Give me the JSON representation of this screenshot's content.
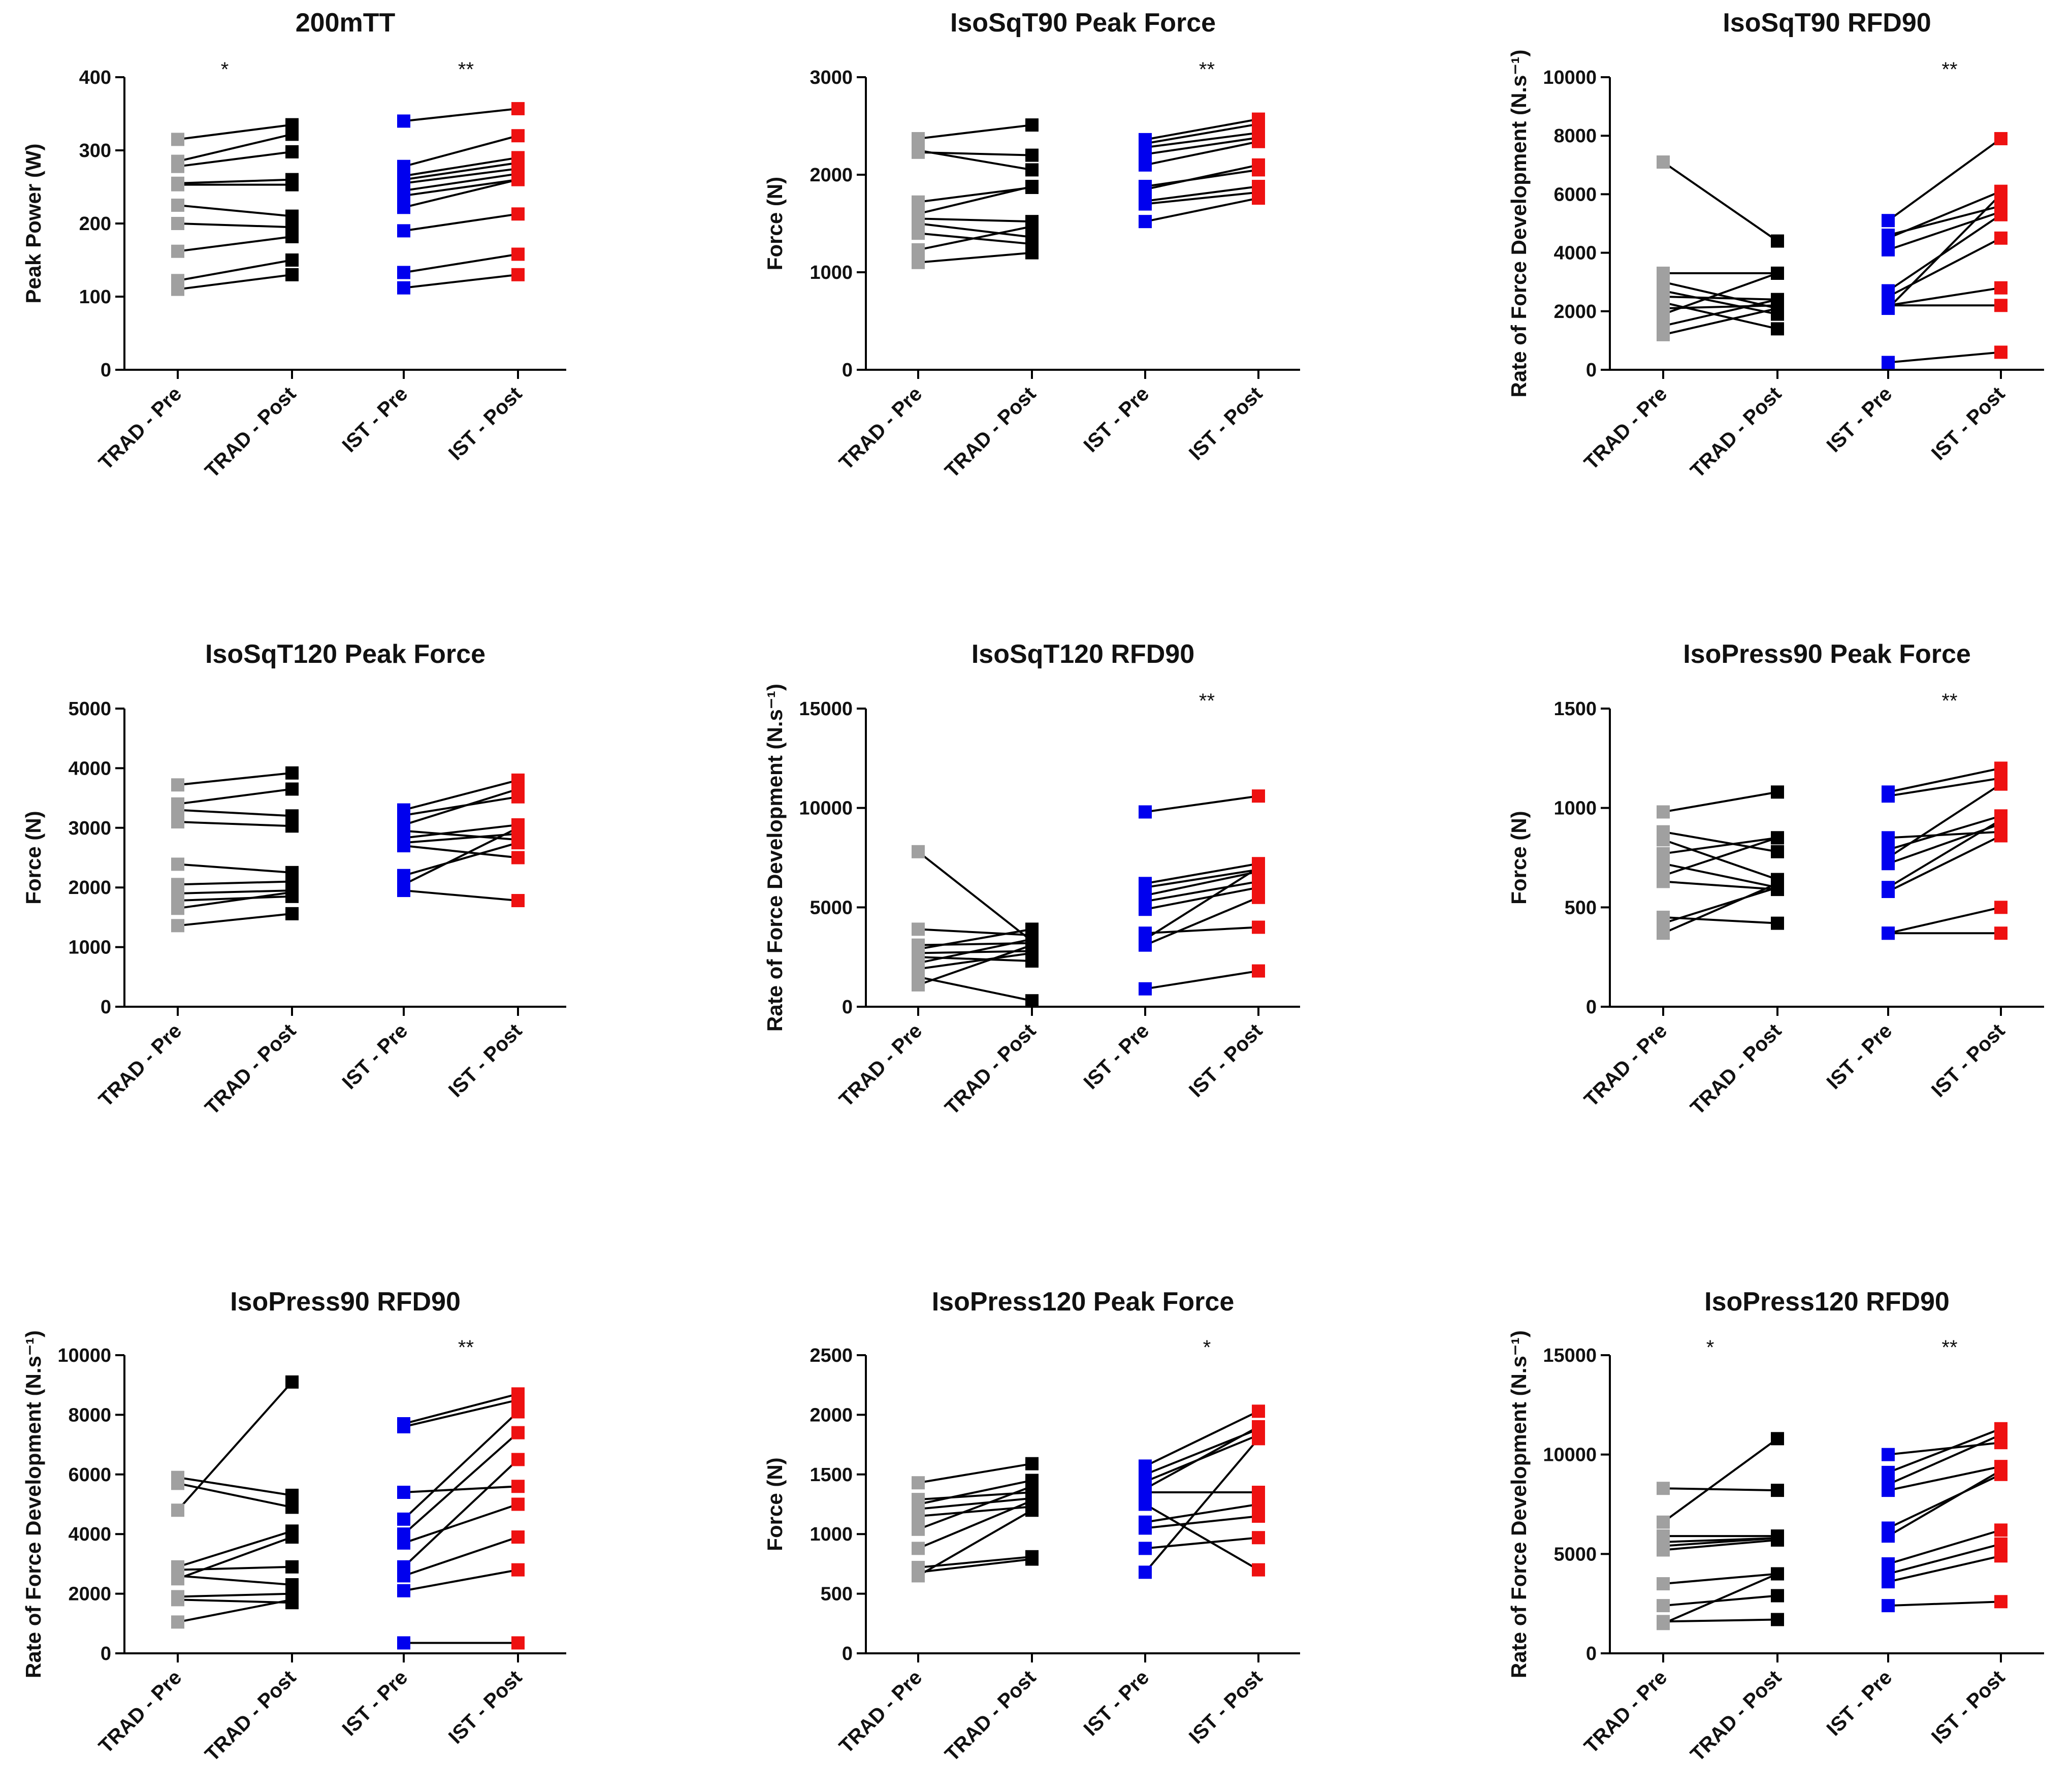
{
  "figure": {
    "categories": [
      "TRAD - Pre",
      "TRAD - Post",
      "IST - Pre",
      "IST - Post"
    ],
    "colors": {
      "trad_pre": "#a0a0a0",
      "trad_post": "#000000",
      "ist_pre": "#0000ee",
      "ist_post": "#ee1111",
      "line": "#000000"
    }
  },
  "chart_data": [
    {
      "type": "scatter",
      "title": "200mTT",
      "ylabel": "Peak  Power (W)",
      "ylim": [
        0,
        400
      ],
      "yticks": [
        0,
        100,
        200,
        300,
        400
      ],
      "significance": {
        "trad": "*",
        "ist": "**"
      },
      "trad_pairs": [
        [
          315,
          335
        ],
        [
          285,
          322
        ],
        [
          278,
          298
        ],
        [
          255,
          260
        ],
        [
          253,
          253
        ],
        [
          225,
          210
        ],
        [
          200,
          195
        ],
        [
          162,
          182
        ],
        [
          122,
          150
        ],
        [
          110,
          130
        ]
      ],
      "ist_pairs": [
        [
          340,
          357
        ],
        [
          278,
          320
        ],
        [
          265,
          290
        ],
        [
          260,
          283
        ],
        [
          255,
          275
        ],
        [
          245,
          268
        ],
        [
          238,
          260
        ],
        [
          222,
          260
        ],
        [
          190,
          213
        ],
        [
          133,
          158
        ],
        [
          112,
          130
        ]
      ]
    },
    {
      "type": "scatter",
      "title": "IsoSqT90 Peak Force",
      "ylabel": "Force (N)",
      "ylim": [
        0,
        3000
      ],
      "yticks": [
        0,
        1000,
        2000,
        3000
      ],
      "significance": {
        "trad": "",
        "ist": "**"
      },
      "trad_pairs": [
        [
          2370,
          2510
        ],
        [
          2250,
          2050
        ],
        [
          2230,
          2200
        ],
        [
          1720,
          1870
        ],
        [
          1600,
          1880
        ],
        [
          1550,
          1520
        ],
        [
          1500,
          1360
        ],
        [
          1400,
          1290
        ],
        [
          1230,
          1470
        ],
        [
          1100,
          1200
        ]
      ],
      "ist_pairs": [
        [
          2360,
          2570
        ],
        [
          2320,
          2520
        ],
        [
          2280,
          2430
        ],
        [
          2210,
          2380
        ],
        [
          2100,
          2340
        ],
        [
          1880,
          2050
        ],
        [
          1850,
          2100
        ],
        [
          1730,
          1880
        ],
        [
          1700,
          1820
        ],
        [
          1520,
          1760
        ]
      ]
    },
    {
      "type": "scatter",
      "title": "IsoSqT90 RFD90",
      "ylabel": "Rate of Force Development (N.s⁻¹)",
      "ylim": [
        0,
        10000
      ],
      "yticks": [
        0,
        2000,
        4000,
        6000,
        8000,
        10000
      ],
      "significance": {
        "trad": "",
        "ist": "**"
      },
      "trad_pairs": [
        [
          7100,
          4400
        ],
        [
          3300,
          3300
        ],
        [
          3000,
          2100
        ],
        [
          2700,
          1900
        ],
        [
          2500,
          2400
        ],
        [
          2300,
          1400
        ],
        [
          2100,
          2200
        ],
        [
          1900,
          3300
        ],
        [
          1500,
          2400
        ],
        [
          1200,
          2100
        ]
      ],
      "ist_pairs": [
        [
          5100,
          7900
        ],
        [
          4600,
          5600
        ],
        [
          4500,
          6100
        ],
        [
          4100,
          5400
        ],
        [
          2700,
          5300
        ],
        [
          2500,
          4500
        ],
        [
          2200,
          2200
        ],
        [
          2200,
          2800
        ],
        [
          2100,
          6000
        ],
        [
          250,
          600
        ]
      ]
    },
    {
      "type": "scatter",
      "title": "IsoSqT120 Peak Force",
      "ylabel": "Force (N)",
      "ylim": [
        0,
        5000
      ],
      "yticks": [
        0,
        1000,
        2000,
        3000,
        4000,
        5000
      ],
      "significance": {
        "trad": "",
        "ist": ""
      },
      "trad_pairs": [
        [
          3720,
          3920
        ],
        [
          3400,
          3650
        ],
        [
          3300,
          3200
        ],
        [
          3100,
          3030
        ],
        [
          2390,
          2250
        ],
        [
          2050,
          2100
        ],
        [
          1900,
          1950
        ],
        [
          1780,
          1850
        ],
        [
          1650,
          1920
        ],
        [
          1360,
          1560
        ]
      ],
      "ist_pairs": [
        [
          3300,
          3800
        ],
        [
          3210,
          3520
        ],
        [
          3050,
          3650
        ],
        [
          2950,
          2800
        ],
        [
          2830,
          3050
        ],
        [
          2750,
          2900
        ],
        [
          2700,
          2500
        ],
        [
          2200,
          2750
        ],
        [
          2050,
          3000
        ],
        [
          1950,
          1780
        ]
      ]
    },
    {
      "type": "scatter",
      "title": "IsoSqT120 RFD90",
      "ylabel": "Rate of Force Development (N.s⁻¹)",
      "ylim": [
        0,
        15000
      ],
      "yticks": [
        0,
        5000,
        10000,
        15000
      ],
      "significance": {
        "trad": "",
        "ist": "**"
      },
      "trad_pairs": [
        [
          7800,
          3300
        ],
        [
          3900,
          3600
        ],
        [
          3100,
          3200
        ],
        [
          2900,
          3900
        ],
        [
          2700,
          2800
        ],
        [
          2500,
          2300
        ],
        [
          2200,
          3400
        ],
        [
          1900,
          2700
        ],
        [
          1500,
          300
        ],
        [
          1100,
          3100
        ]
      ],
      "ist_pairs": [
        [
          9800,
          10600
        ],
        [
          6200,
          7200
        ],
        [
          6000,
          6900
        ],
        [
          5600,
          6800
        ],
        [
          5300,
          6300
        ],
        [
          4900,
          6000
        ],
        [
          3700,
          4000
        ],
        [
          3400,
          7000
        ],
        [
          3100,
          5500
        ],
        [
          900,
          1800
        ]
      ]
    },
    {
      "type": "scatter",
      "title": "IsoPress90 Peak Force",
      "ylabel": "Force (N)",
      "ylim": [
        0,
        1500
      ],
      "yticks": [
        0,
        500,
        1000,
        1500
      ],
      "significance": {
        "trad": "",
        "ist": "**"
      },
      "trad_pairs": [
        [
          980,
          1080
        ],
        [
          880,
          780
        ],
        [
          840,
          640
        ],
        [
          770,
          850
        ],
        [
          720,
          600
        ],
        [
          660,
          850
        ],
        [
          630,
          590
        ],
        [
          450,
          420
        ],
        [
          420,
          600
        ],
        [
          370,
          620
        ]
      ],
      "ist_pairs": [
        [
          1080,
          1200
        ],
        [
          1060,
          1150
        ],
        [
          850,
          880
        ],
        [
          790,
          960
        ],
        [
          750,
          1120
        ],
        [
          720,
          920
        ],
        [
          600,
          940
        ],
        [
          580,
          860
        ],
        [
          370,
          500
        ],
        [
          370,
          370
        ]
      ]
    },
    {
      "type": "scatter",
      "title": "IsoPress90 RFD90",
      "ylabel": "Rate of Force Development (N.s⁻¹)",
      "ylim": [
        0,
        10000
      ],
      "yticks": [
        0,
        2000,
        4000,
        6000,
        8000,
        10000
      ],
      "significance": {
        "trad": "",
        "ist": "**"
      },
      "trad_pairs": [
        [
          5900,
          5300
        ],
        [
          5700,
          4900
        ],
        [
          4800,
          9100
        ],
        [
          2900,
          4100
        ],
        [
          2800,
          2900
        ],
        [
          2600,
          2300
        ],
        [
          2500,
          3900
        ],
        [
          1900,
          2000
        ],
        [
          1800,
          1700
        ],
        [
          1050,
          1800
        ]
      ],
      "ist_pairs": [
        [
          7700,
          8700
        ],
        [
          7600,
          8500
        ],
        [
          5400,
          5600
        ],
        [
          4500,
          8100
        ],
        [
          4000,
          7400
        ],
        [
          3700,
          5000
        ],
        [
          2900,
          6500
        ],
        [
          2600,
          3900
        ],
        [
          2100,
          2800
        ],
        [
          350,
          350
        ]
      ]
    },
    {
      "type": "scatter",
      "title": "IsoPress120 Peak Force",
      "ylabel": "Force (N)",
      "ylim": [
        0,
        2500
      ],
      "yticks": [
        0,
        500,
        1000,
        1500,
        2000,
        2500
      ],
      "significance": {
        "trad": "",
        "ist": "*"
      },
      "trad_pairs": [
        [
          1430,
          1590
        ],
        [
          1290,
          1350
        ],
        [
          1250,
          1450
        ],
        [
          1210,
          1300
        ],
        [
          1150,
          1230
        ],
        [
          1040,
          1400
        ],
        [
          880,
          1280
        ],
        [
          720,
          810
        ],
        [
          680,
          790
        ],
        [
          650,
          1200
        ]
      ],
      "ist_pairs": [
        [
          1570,
          2030
        ],
        [
          1500,
          1880
        ],
        [
          1440,
          1830
        ],
        [
          1380,
          1900
        ],
        [
          1350,
          1350
        ],
        [
          1250,
          700
        ],
        [
          1100,
          1250
        ],
        [
          1050,
          1150
        ],
        [
          880,
          970
        ],
        [
          680,
          1800
        ]
      ]
    },
    {
      "type": "scatter",
      "title": "IsoPress120 RFD90",
      "ylabel": "Rate of Force Development (N.s⁻¹)",
      "ylim": [
        0,
        15000
      ],
      "yticks": [
        0,
        5000,
        10000,
        15000
      ],
      "significance": {
        "trad": "*",
        "ist": "**"
      },
      "trad_pairs": [
        [
          8300,
          8200
        ],
        [
          6600,
          10800
        ],
        [
          5900,
          5900
        ],
        [
          5600,
          5800
        ],
        [
          5400,
          5800
        ],
        [
          5200,
          5700
        ],
        [
          3500,
          4000
        ],
        [
          2400,
          2900
        ],
        [
          1600,
          1700
        ],
        [
          1500,
          4000
        ]
      ],
      "ist_pairs": [
        [
          10000,
          10600
        ],
        [
          9100,
          11300
        ],
        [
          8500,
          11000
        ],
        [
          8200,
          9400
        ],
        [
          6300,
          9000
        ],
        [
          5900,
          9200
        ],
        [
          4500,
          6200
        ],
        [
          4000,
          5500
        ],
        [
          3600,
          4900
        ],
        [
          2400,
          2600
        ]
      ]
    }
  ]
}
